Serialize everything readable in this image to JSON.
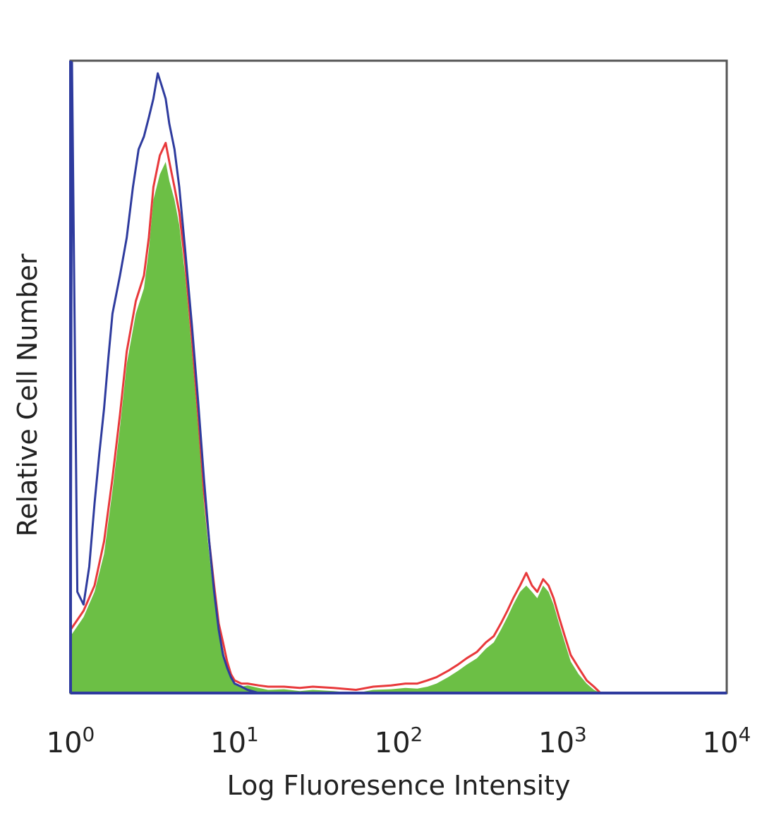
{
  "chart_data": {
    "type": "area",
    "xlabel": "Log Fluoresence Intensity",
    "ylabel": "Relative Cell Number",
    "x_scale": "log",
    "xlim": [
      1,
      10000
    ],
    "ylim": [
      0,
      100
    ],
    "x_ticks": [
      {
        "value": 1,
        "base": "10",
        "exp": "0"
      },
      {
        "value": 10,
        "base": "10",
        "exp": "1"
      },
      {
        "value": 100,
        "base": "10",
        "exp": "2"
      },
      {
        "value": 1000,
        "base": "10",
        "exp": "3"
      },
      {
        "value": 10000,
        "base": "10",
        "exp": "4"
      }
    ],
    "grid": false,
    "colors": {
      "filled_series": "#6cbf45",
      "red_series": "#e8393b",
      "blue_series": "#2e3b9e",
      "frame": "#555555"
    },
    "series": [
      {
        "style": "filled",
        "color": "#6cbf45",
        "x": [
          1.0,
          1.2,
          1.4,
          1.6,
          1.8,
          2.0,
          2.2,
          2.5,
          2.8,
          3.0,
          3.2,
          3.5,
          3.8,
          4.0,
          4.3,
          4.6,
          5.0,
          5.5,
          6.0,
          6.5,
          7.0,
          7.5,
          8.0,
          8.5,
          9.0,
          9.5,
          10.0,
          11.0,
          12.0,
          14.0,
          16.0,
          20.0,
          25.0,
          30.0,
          40.0,
          55.0,
          70.0,
          90.0,
          110.0,
          130.0,
          150.0,
          170.0,
          200.0,
          230.0,
          260.0,
          300.0,
          340.0,
          380.0,
          420.0,
          460.0,
          500.0,
          550.0,
          600.0,
          650.0,
          700.0,
          760.0,
          820.0,
          880.0,
          950.0,
          1030.0,
          1120.0,
          1250.0,
          1400.0,
          1550.0,
          1700.0
        ],
        "y": [
          9,
          12,
          16,
          22,
          32,
          42,
          52,
          60,
          64,
          70,
          78,
          82,
          84,
          81,
          78,
          74,
          66,
          54,
          42,
          30,
          22,
          15,
          10,
          7,
          4,
          2.5,
          1.5,
          1,
          1.2,
          0.8,
          0.5,
          0.6,
          0.3,
          0.5,
          0.3,
          0,
          0.5,
          0.6,
          0.8,
          0.7,
          1,
          1.5,
          2.5,
          3.5,
          4.5,
          5.5,
          7,
          8,
          10,
          12,
          14,
          16,
          17,
          16,
          15,
          17,
          16,
          14,
          11,
          8,
          5,
          3,
          1.5,
          0.5,
          0
        ]
      },
      {
        "style": "line",
        "color": "#e8393b",
        "x": [
          1.0,
          1.2,
          1.4,
          1.6,
          1.8,
          2.0,
          2.2,
          2.5,
          2.8,
          3.0,
          3.2,
          3.5,
          3.8,
          4.0,
          4.3,
          4.6,
          5.0,
          5.5,
          6.0,
          6.5,
          7.0,
          7.5,
          8.0,
          8.5,
          9.0,
          9.5,
          10.0,
          11.0,
          12.0,
          14.0,
          16.0,
          20.0,
          25.0,
          30.0,
          40.0,
          55.0,
          70.0,
          90.0,
          110.0,
          130.0,
          150.0,
          170.0,
          200.0,
          230.0,
          260.0,
          300.0,
          340.0,
          380.0,
          420.0,
          460.0,
          500.0,
          550.0,
          600.0,
          650.0,
          700.0,
          760.0,
          820.0,
          880.0,
          950.0,
          1030.0,
          1120.0,
          1250.0,
          1400.0,
          1550.0,
          1700.0
        ],
        "y": [
          10,
          13,
          17,
          24,
          34,
          44,
          54,
          62,
          66,
          72,
          80,
          85,
          87,
          84,
          80,
          76,
          68,
          56,
          44,
          32,
          24,
          17,
          11,
          8,
          5,
          3,
          2,
          1.5,
          1.5,
          1.2,
          1,
          1,
          0.8,
          1,
          0.8,
          0.5,
          1,
          1.2,
          1.5,
          1.5,
          2,
          2.5,
          3.5,
          4.5,
          5.5,
          6.5,
          8,
          9,
          11,
          13,
          15,
          17,
          19,
          17,
          16,
          18,
          17,
          15,
          12,
          9,
          6,
          4,
          2,
          1,
          0
        ]
      },
      {
        "style": "line",
        "color": "#2e3b9e",
        "x": [
          1.0,
          1.02,
          1.1,
          1.2,
          1.3,
          1.4,
          1.5,
          1.6,
          1.7,
          1.8,
          2.0,
          2.2,
          2.4,
          2.6,
          2.8,
          3.0,
          3.2,
          3.4,
          3.6,
          3.8,
          4.0,
          4.3,
          4.6,
          5.0,
          5.5,
          6.0,
          6.5,
          7.0,
          7.5,
          8.0,
          8.5,
          9.0,
          9.5,
          10.0,
          11.0,
          12.0,
          14.0,
          10000.0
        ],
        "y": [
          0,
          100,
          16,
          14,
          20,
          30,
          38,
          45,
          53,
          60,
          66,
          72,
          80,
          86,
          88,
          91,
          94,
          98,
          96,
          94,
          90,
          86,
          80,
          70,
          58,
          46,
          34,
          24,
          16,
          10,
          6,
          4,
          2.5,
          1.5,
          1,
          0.5,
          0,
          0
        ]
      }
    ]
  }
}
